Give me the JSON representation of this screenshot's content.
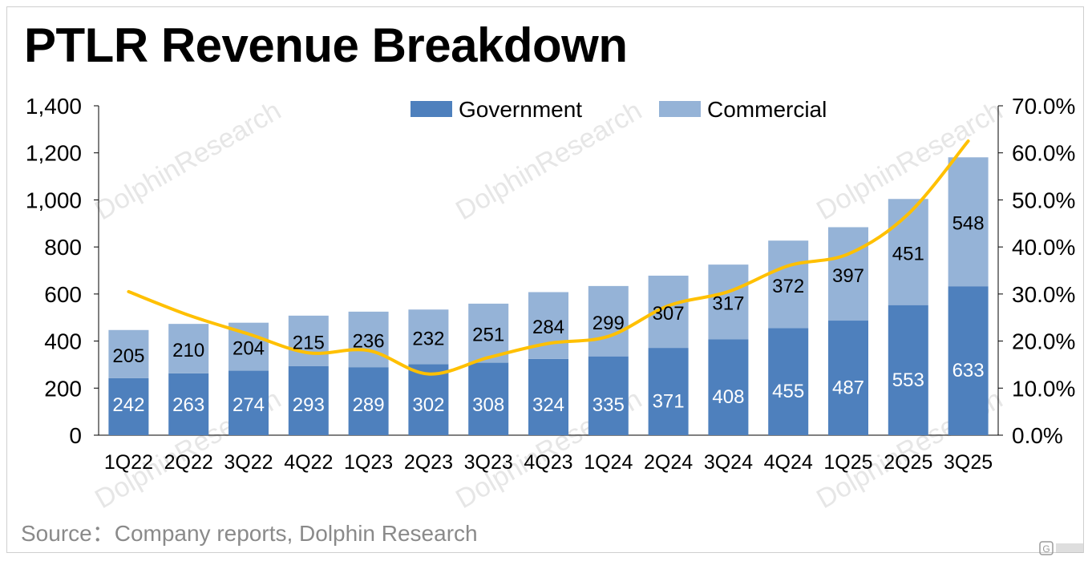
{
  "page": {
    "title": "PTLR Revenue Breakdown",
    "source": "Source：Company reports, Dolphin Research",
    "watermark": "DolphinResearch"
  },
  "colors": {
    "government": "#4E80BD",
    "commercial": "#95B3D7",
    "line": "#FFC000",
    "axis": "#000000",
    "watermark": "#e6e6e6"
  },
  "chart_data": {
    "type": "bar",
    "stacked": true,
    "title": "PTLR Revenue Breakdown",
    "categories": [
      "1Q22",
      "2Q22",
      "3Q22",
      "4Q22",
      "1Q23",
      "2Q23",
      "3Q23",
      "4Q23",
      "1Q24",
      "2Q24",
      "3Q24",
      "4Q24",
      "1Q25",
      "2Q25",
      "3Q25"
    ],
    "series": [
      {
        "name": "Government",
        "values": [
          242,
          263,
          274,
          293,
          289,
          302,
          308,
          324,
          335,
          371,
          408,
          455,
          487,
          553,
          633
        ]
      },
      {
        "name": "Commercial",
        "values": [
          205,
          210,
          204,
          215,
          236,
          232,
          251,
          284,
          299,
          307,
          317,
          372,
          397,
          451,
          548
        ]
      }
    ],
    "line": {
      "axis": "secondary",
      "values": [
        30.5,
        25.5,
        21.5,
        17.5,
        18.0,
        13.0,
        16.5,
        19.5,
        21.0,
        27.5,
        30.5,
        36.0,
        38.5,
        47.0,
        62.5
      ]
    },
    "ylim": [
      0,
      1400
    ],
    "yticks": [
      "0",
      "200",
      "400",
      "600",
      "800",
      "1,000",
      "1,200",
      "1,400"
    ],
    "y2lim": [
      0,
      70
    ],
    "y2ticks": [
      "0.0%",
      "10.0%",
      "20.0%",
      "30.0%",
      "40.0%",
      "50.0%",
      "60.0%",
      "70.0%"
    ],
    "legend": "top-center",
    "grid": false
  }
}
